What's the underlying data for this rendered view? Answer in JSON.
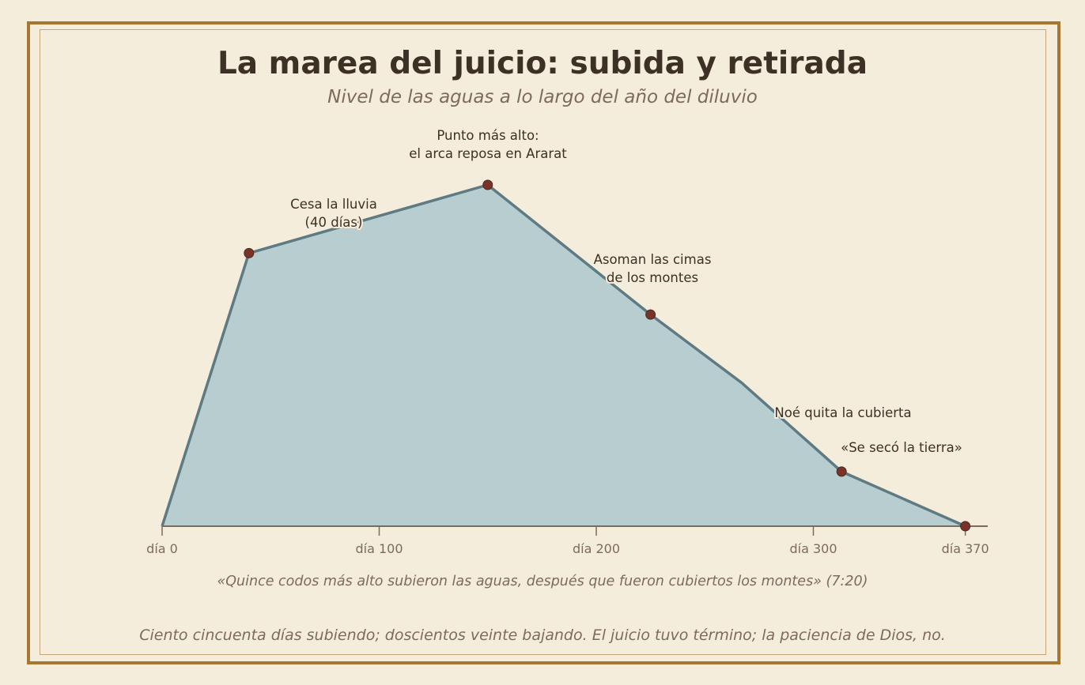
{
  "title": "La marea del juicio: subida y retirada",
  "subtitle": "Nivel de las aguas a lo largo del año del diluvio",
  "quote": "«Quince codos más alto subieron las aguas, después que fueron cubiertos los montes» (7:20)",
  "footer": "Ciento cincuenta días subiendo; doscientos veinte bajando. El juicio tuvo término; la paciencia de Dios, no.",
  "colors": {
    "fill": "#b8cdd0",
    "line": "#5e7a83",
    "marker": "#7a3328",
    "axis": "#7d6b5a",
    "text": "#3d3024"
  },
  "chart_data": {
    "type": "area",
    "xlim": [
      0,
      380
    ],
    "ylim": [
      0,
      100
    ],
    "grid": false,
    "x_ticks": [
      {
        "value": 0,
        "label": "día 0"
      },
      {
        "value": 100,
        "label": "día 100"
      },
      {
        "value": 200,
        "label": "día 200"
      },
      {
        "value": 300,
        "label": "día 300"
      },
      {
        "value": 370,
        "label": "día 370"
      }
    ],
    "line_points": [
      {
        "x": 0,
        "y": 0
      },
      {
        "x": 40,
        "y": 80
      },
      {
        "x": 150,
        "y": 100
      },
      {
        "x": 225,
        "y": 62
      },
      {
        "x": 267,
        "y": 42
      },
      {
        "x": 313,
        "y": 16
      },
      {
        "x": 370,
        "y": 0
      }
    ],
    "markers": [
      {
        "x": 40,
        "y": 80
      },
      {
        "x": 150,
        "y": 100
      },
      {
        "x": 225,
        "y": 62
      },
      {
        "x": 313,
        "y": 16
      },
      {
        "x": 370,
        "y": 0
      }
    ],
    "annotations": [
      {
        "lines": [
          "Punto más alto:",
          "el arca reposa en Ararat"
        ]
      },
      {
        "lines": [
          "Cesa la lluvia",
          "(40 días)"
        ]
      },
      {
        "lines": [
          "Asoman las cimas",
          "de los montes"
        ]
      },
      {
        "lines": [
          "Noé quita la cubierta"
        ]
      },
      {
        "lines": [
          "«Se secó la tierra»"
        ]
      }
    ]
  }
}
